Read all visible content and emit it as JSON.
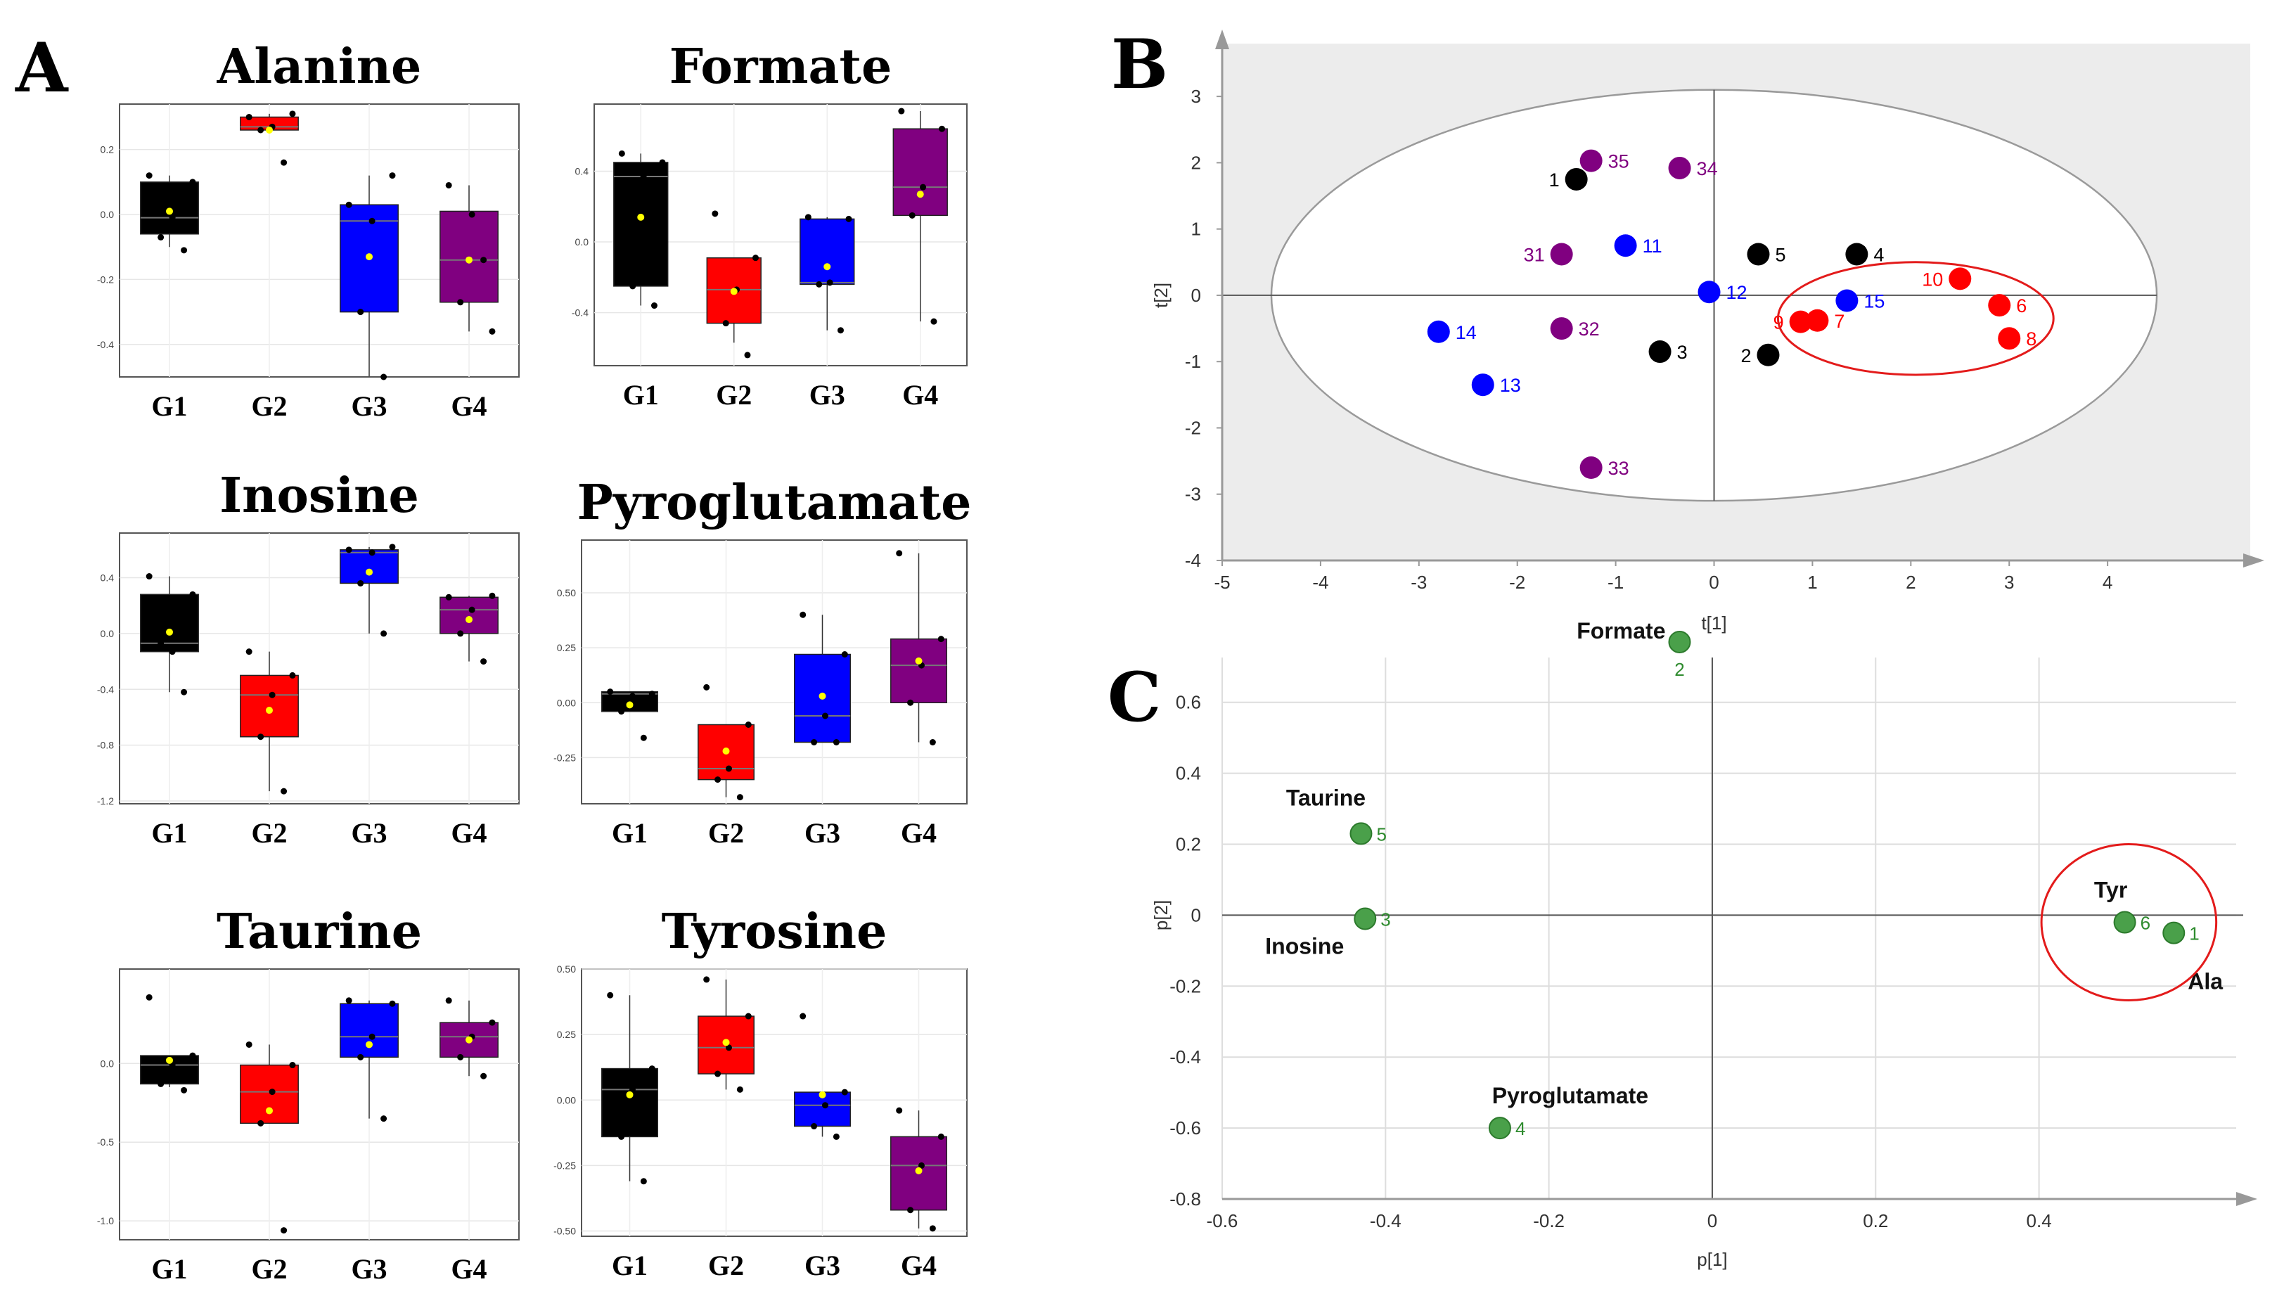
{
  "panels": {
    "a": "A",
    "b": "B",
    "c": "C"
  },
  "colors": {
    "G1": "#000000",
    "G2": "#ff0000",
    "G3": "#0000ff",
    "G4": "#800080",
    "mean": "#ffff00",
    "loading": "#4aa04a",
    "circle": "#e31b1b"
  },
  "chart_data": [
    {
      "type": "box",
      "title": "Alanine",
      "categories": [
        "G1",
        "G2",
        "G3",
        "G4"
      ],
      "ylim": [
        -0.5,
        0.34
      ],
      "yticks": [
        "0.2",
        "0.0",
        "-0.2",
        "-0.4"
      ],
      "boxes": [
        {
          "q1": -0.06,
          "median": -0.01,
          "q3": 0.1,
          "wlo": -0.1,
          "whi": 0.12,
          "mean": 0.01,
          "pts": [
            0.12,
            0.1,
            -0.07,
            -0.11,
            -0.01
          ]
        },
        {
          "q1": 0.26,
          "median": 0.27,
          "q3": 0.3,
          "wlo": 0.25,
          "whi": 0.31,
          "mean": 0.26,
          "pts": [
            0.3,
            0.31,
            0.26,
            0.16,
            0.27
          ]
        },
        {
          "q1": -0.3,
          "median": -0.02,
          "q3": 0.03,
          "wlo": -0.5,
          "whi": 0.12,
          "mean": -0.13,
          "pts": [
            0.03,
            0.12,
            -0.3,
            -0.5,
            -0.02
          ]
        },
        {
          "q1": -0.27,
          "median": -0.14,
          "q3": 0.01,
          "wlo": -0.36,
          "whi": 0.09,
          "mean": -0.14,
          "pts": [
            0.09,
            -0.36,
            -0.27,
            -0.14,
            0.0
          ]
        }
      ]
    },
    {
      "type": "box",
      "title": "Formate",
      "categories": [
        "G1",
        "G2",
        "G3",
        "G4"
      ],
      "ylim": [
        -0.7,
        0.78
      ],
      "yticks": [
        "0.4",
        "0.0",
        "-0.4"
      ],
      "boxes": [
        {
          "q1": -0.25,
          "median": 0.37,
          "q3": 0.45,
          "wlo": -0.36,
          "whi": 0.5,
          "mean": 0.14,
          "pts": [
            0.5,
            0.45,
            -0.25,
            -0.36,
            0.37
          ]
        },
        {
          "q1": -0.46,
          "median": -0.27,
          "q3": -0.09,
          "wlo": -0.57,
          "whi": -0.09,
          "mean": -0.28,
          "pts": [
            0.16,
            -0.09,
            -0.46,
            -0.64,
            -0.27
          ]
        },
        {
          "q1": -0.24,
          "median": -0.23,
          "q3": 0.13,
          "wlo": -0.5,
          "whi": 0.14,
          "mean": -0.14,
          "pts": [
            0.14,
            0.13,
            -0.24,
            -0.5,
            -0.23
          ]
        },
        {
          "q1": 0.15,
          "median": 0.31,
          "q3": 0.64,
          "wlo": -0.45,
          "whi": 0.74,
          "mean": 0.27,
          "pts": [
            0.74,
            0.64,
            0.15,
            -0.45,
            0.31
          ]
        }
      ]
    },
    {
      "type": "box",
      "title": "Inosine",
      "categories": [
        "G1",
        "G2",
        "G3",
        "G4"
      ],
      "ylim": [
        -1.22,
        0.72
      ],
      "yticks": [
        "0.4",
        "0.0",
        "-0.4",
        "-0.8",
        "-1.2"
      ],
      "boxes": [
        {
          "q1": -0.13,
          "median": -0.07,
          "q3": 0.28,
          "wlo": -0.42,
          "whi": 0.41,
          "mean": 0.01,
          "pts": [
            0.41,
            0.28,
            -0.07,
            -0.42,
            -0.13
          ]
        },
        {
          "q1": -0.74,
          "median": -0.44,
          "q3": -0.3,
          "wlo": -1.13,
          "whi": -0.13,
          "mean": -0.55,
          "pts": [
            -0.13,
            -0.3,
            -0.74,
            -1.13,
            -0.44
          ]
        },
        {
          "q1": 0.36,
          "median": 0.58,
          "q3": 0.6,
          "wlo": 0.0,
          "whi": 0.62,
          "mean": 0.44,
          "pts": [
            0.6,
            0.62,
            0.36,
            0.0,
            0.58
          ]
        },
        {
          "q1": 0.0,
          "median": 0.17,
          "q3": 0.26,
          "wlo": -0.2,
          "whi": 0.27,
          "mean": 0.1,
          "pts": [
            0.26,
            0.27,
            0.0,
            -0.2,
            0.17
          ]
        }
      ]
    },
    {
      "type": "box",
      "title": "Pyroglutamate",
      "categories": [
        "G1",
        "G2",
        "G3",
        "G4"
      ],
      "ylim": [
        -0.46,
        0.74
      ],
      "yticks": [
        "0.50",
        "0.25",
        "0.00",
        "-0.25"
      ],
      "boxes": [
        {
          "q1": -0.04,
          "median": 0.04,
          "q3": 0.05,
          "wlo": -0.04,
          "whi": 0.05,
          "mean": -0.01,
          "pts": [
            0.05,
            0.04,
            -0.04,
            -0.16,
            0.03
          ]
        },
        {
          "q1": -0.35,
          "median": -0.3,
          "q3": -0.1,
          "wlo": -0.43,
          "whi": -0.1,
          "mean": -0.22,
          "pts": [
            0.07,
            -0.1,
            -0.35,
            -0.43,
            -0.3
          ]
        },
        {
          "q1": -0.18,
          "median": -0.06,
          "q3": 0.22,
          "wlo": -0.18,
          "whi": 0.4,
          "mean": 0.03,
          "pts": [
            0.4,
            0.22,
            -0.18,
            -0.18,
            -0.06
          ]
        },
        {
          "q1": 0.0,
          "median": 0.17,
          "q3": 0.29,
          "wlo": -0.18,
          "whi": 0.68,
          "mean": 0.19,
          "pts": [
            0.68,
            0.29,
            0.0,
            -0.18,
            0.17
          ]
        }
      ]
    },
    {
      "type": "box",
      "title": "Taurine",
      "categories": [
        "G1",
        "G2",
        "G3",
        "G4"
      ],
      "ylim": [
        -1.12,
        0.6
      ],
      "yticks": [
        "0.0",
        "-0.5",
        "-1.0"
      ],
      "boxes": [
        {
          "q1": -0.13,
          "median": -0.01,
          "q3": 0.05,
          "wlo": -0.15,
          "whi": 0.05,
          "mean": 0.02,
          "pts": [
            0.42,
            0.05,
            -0.13,
            -0.17,
            -0.01
          ]
        },
        {
          "q1": -0.38,
          "median": -0.18,
          "q3": -0.01,
          "wlo": -0.38,
          "whi": 0.12,
          "mean": -0.3,
          "pts": [
            0.12,
            -0.01,
            -0.38,
            -1.06,
            -0.18
          ]
        },
        {
          "q1": 0.04,
          "median": 0.17,
          "q3": 0.38,
          "wlo": -0.35,
          "whi": 0.4,
          "mean": 0.12,
          "pts": [
            0.4,
            0.38,
            0.04,
            -0.35,
            0.17
          ]
        },
        {
          "q1": 0.04,
          "median": 0.17,
          "q3": 0.26,
          "wlo": -0.08,
          "whi": 0.4,
          "mean": 0.15,
          "pts": [
            0.4,
            0.26,
            0.04,
            -0.08,
            0.17
          ]
        }
      ]
    },
    {
      "type": "box",
      "title": "Tyrosine",
      "categories": [
        "G1",
        "G2",
        "G3",
        "G4"
      ],
      "ylim": [
        -0.52,
        0.5
      ],
      "yticks": [
        "0.50",
        "0.25",
        "0.00",
        "-0.25",
        "-0.50"
      ],
      "boxes": [
        {
          "q1": -0.14,
          "median": 0.04,
          "q3": 0.12,
          "wlo": -0.31,
          "whi": 0.4,
          "mean": 0.02,
          "pts": [
            0.4,
            0.12,
            -0.14,
            -0.31,
            0.04
          ]
        },
        {
          "q1": 0.1,
          "median": 0.2,
          "q3": 0.32,
          "wlo": 0.04,
          "whi": 0.46,
          "mean": 0.22,
          "pts": [
            0.46,
            0.32,
            0.1,
            0.04,
            0.2
          ]
        },
        {
          "q1": -0.1,
          "median": -0.02,
          "q3": 0.03,
          "wlo": -0.14,
          "whi": 0.03,
          "mean": 0.02,
          "pts": [
            0.32,
            0.03,
            -0.1,
            -0.14,
            -0.02
          ]
        },
        {
          "q1": -0.42,
          "median": -0.25,
          "q3": -0.14,
          "wlo": -0.49,
          "whi": -0.04,
          "mean": -0.27,
          "pts": [
            -0.04,
            -0.14,
            -0.42,
            -0.49,
            -0.25
          ]
        }
      ]
    },
    {
      "type": "scatter",
      "xlabel": "t[1]",
      "ylabel": "t[2]",
      "xlim": [
        -5,
        5
      ],
      "ylim": [
        -4,
        3.5
      ],
      "xticks": [
        -5,
        -4,
        -3,
        -2,
        -1,
        0,
        1,
        2,
        3,
        4
      ],
      "yticks": [
        3,
        2,
        1,
        0,
        -1,
        -2,
        -3,
        -4
      ],
      "ellipse": {
        "cx": 0,
        "cy": 0,
        "rx": 4.5,
        "ry": 3.1
      },
      "highlight": {
        "cx": 2.05,
        "cy": -0.35,
        "rx": 1.4,
        "ry": 0.85
      },
      "points": [
        {
          "id": "1",
          "group": "G1",
          "x": -1.4,
          "y": 1.75,
          "lab": "left"
        },
        {
          "id": "2",
          "group": "G1",
          "x": 0.55,
          "y": -0.9,
          "lab": "left"
        },
        {
          "id": "3",
          "group": "G1",
          "x": -0.55,
          "y": -0.85,
          "lab": "right"
        },
        {
          "id": "4",
          "group": "G1",
          "x": 1.45,
          "y": 0.62,
          "lab": "right"
        },
        {
          "id": "5",
          "group": "G1",
          "x": 0.45,
          "y": 0.62,
          "lab": "right"
        },
        {
          "id": "6",
          "group": "G2",
          "x": 2.9,
          "y": -0.15,
          "lab": "right"
        },
        {
          "id": "7",
          "group": "G2",
          "x": 1.05,
          "y": -0.38,
          "lab": "right"
        },
        {
          "id": "8",
          "group": "G2",
          "x": 3.0,
          "y": -0.65,
          "lab": "right"
        },
        {
          "id": "9",
          "group": "G2",
          "x": 0.88,
          "y": -0.4,
          "lab": "left"
        },
        {
          "id": "10",
          "group": "G2",
          "x": 2.5,
          "y": 0.25,
          "lab": "left"
        },
        {
          "id": "11",
          "group": "G3",
          "x": -0.9,
          "y": 0.75,
          "lab": "right"
        },
        {
          "id": "12",
          "group": "G3",
          "x": -0.05,
          "y": 0.05,
          "lab": "right"
        },
        {
          "id": "13",
          "group": "G3",
          "x": -2.35,
          "y": -1.35,
          "lab": "right"
        },
        {
          "id": "14",
          "group": "G3",
          "x": -2.8,
          "y": -0.55,
          "lab": "right"
        },
        {
          "id": "15",
          "group": "G3",
          "x": 1.35,
          "y": -0.08,
          "lab": "right"
        },
        {
          "id": "31",
          "group": "G4",
          "x": -1.55,
          "y": 0.62,
          "lab": "left"
        },
        {
          "id": "32",
          "group": "G4",
          "x": -1.55,
          "y": -0.5,
          "lab": "right"
        },
        {
          "id": "33",
          "group": "G4",
          "x": -1.25,
          "y": -2.6,
          "lab": "right"
        },
        {
          "id": "34",
          "group": "G4",
          "x": -0.35,
          "y": 1.92,
          "lab": "right"
        },
        {
          "id": "35",
          "group": "G4",
          "x": -1.25,
          "y": 2.03,
          "lab": "right"
        }
      ]
    },
    {
      "type": "scatter",
      "xlabel": "p[1]",
      "ylabel": "p[2]",
      "xlim": [
        -0.6,
        0.6
      ],
      "ylim": [
        -0.8,
        0.76
      ],
      "xticks": [
        "-0.6",
        "-0.4",
        "-0.2",
        "0",
        "0.2",
        "0.4"
      ],
      "yticks": [
        "0.6",
        "0.4",
        "0.2",
        "0",
        "-0.2",
        "-0.4",
        "-0.6",
        "-0.8"
      ],
      "highlight": {
        "cx": 0.51,
        "cy": -0.02,
        "rx": 0.107,
        "ry": 0.22
      },
      "points": [
        {
          "id": "1",
          "name": "Ala",
          "x": 0.565,
          "y": -0.05
        },
        {
          "id": "2",
          "name": "Formate",
          "x": -0.04,
          "y": 0.77
        },
        {
          "id": "3",
          "name": "Inosine",
          "x": -0.425,
          "y": -0.01
        },
        {
          "id": "4",
          "name": "Pyroglutamate",
          "x": -0.26,
          "y": -0.6
        },
        {
          "id": "5",
          "name": "Taurine",
          "x": -0.43,
          "y": 0.23
        },
        {
          "id": "6",
          "name": "Tyr",
          "x": 0.505,
          "y": -0.02
        }
      ]
    }
  ]
}
